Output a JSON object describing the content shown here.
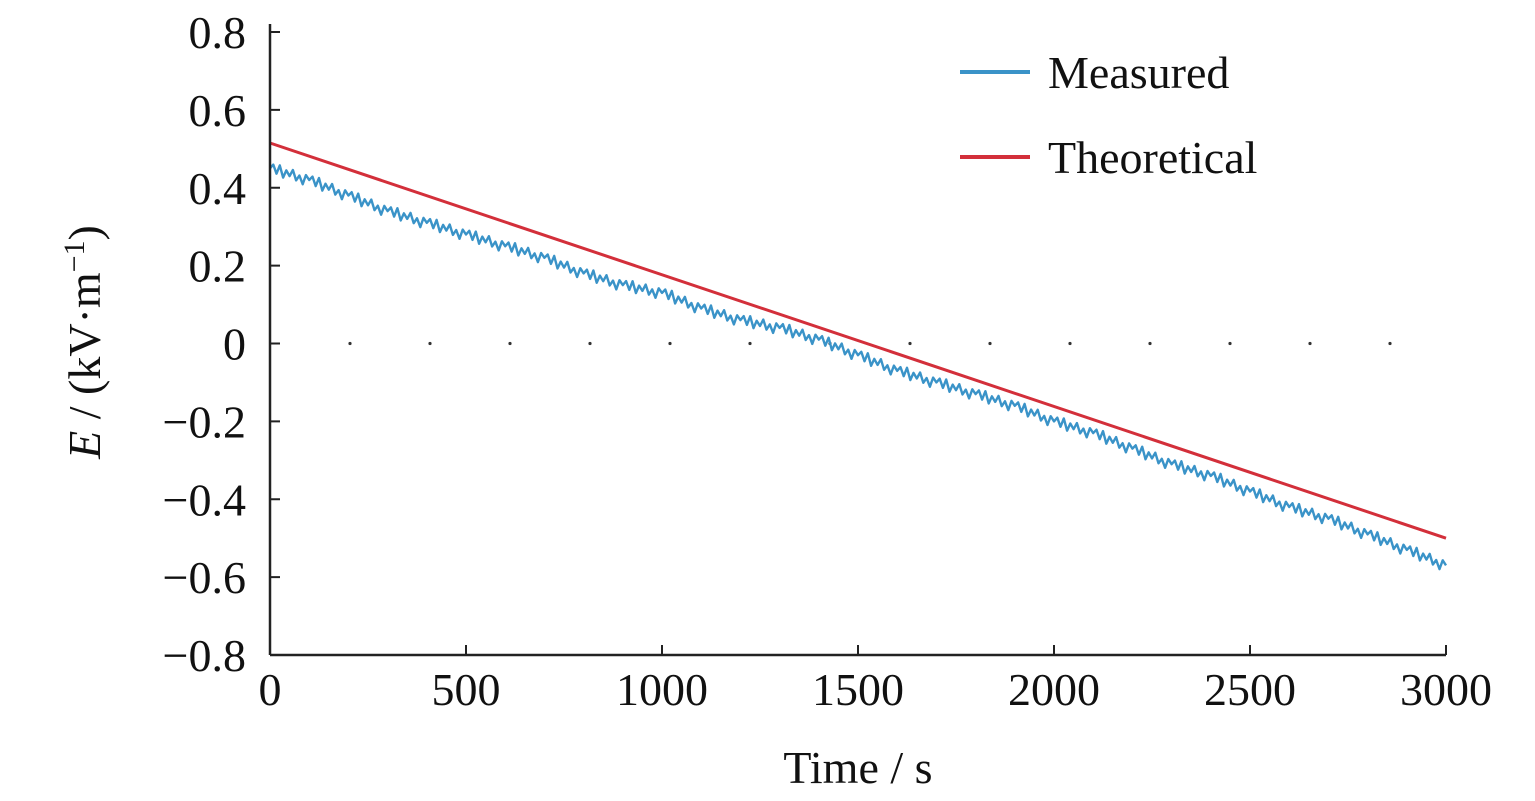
{
  "chart_data": {
    "type": "line",
    "xlabel": "Time / s",
    "ylabel": {
      "symbol": "E",
      "rest": " / (kV·m",
      "superscript": "−1",
      "close": ")"
    },
    "xlim": [
      0,
      3000
    ],
    "ylim": [
      -0.8,
      0.8
    ],
    "x_ticks": [
      0,
      500,
      1000,
      1500,
      2000,
      2500,
      3000
    ],
    "x_tick_labels": [
      "0",
      "500",
      "1000",
      "1500",
      "2000",
      "2500",
      "3000"
    ],
    "y_ticks": [
      0.8,
      0.6,
      0.4,
      0.2,
      0,
      -0.2,
      -0.4,
      -0.6,
      -0.8
    ],
    "y_tick_labels": [
      "0.8",
      "0.6",
      "0.4",
      "0.2",
      "0",
      "−0.2",
      "−0.4",
      "−0.6",
      "−0.8"
    ],
    "zero_reference": "dotted",
    "legend_position": "top-right",
    "series": [
      {
        "name": "Measured",
        "color": "#3a93c8",
        "x": [
          0,
          100,
          200,
          300,
          400,
          500,
          600,
          700,
          800,
          900,
          1000,
          1100,
          1200,
          1300,
          1400,
          1500,
          1600,
          1700,
          1800,
          1900,
          2000,
          2100,
          2200,
          2300,
          2400,
          2500,
          2600,
          2700,
          2800,
          2900,
          3000
        ],
        "y": [
          0.45,
          0.42,
          0.38,
          0.34,
          0.31,
          0.28,
          0.25,
          0.22,
          0.18,
          0.15,
          0.13,
          0.09,
          0.06,
          0.04,
          0.01,
          -0.03,
          -0.07,
          -0.1,
          -0.13,
          -0.16,
          -0.2,
          -0.23,
          -0.27,
          -0.31,
          -0.34,
          -0.38,
          -0.42,
          -0.45,
          -0.49,
          -0.53,
          -0.57
        ]
      },
      {
        "name": "Theoretical",
        "color": "#d32f3a",
        "x": [
          0,
          3000
        ],
        "y": [
          0.515,
          -0.5
        ]
      }
    ]
  }
}
